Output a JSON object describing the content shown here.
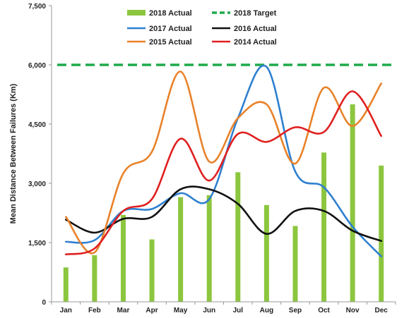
{
  "chart_data": {
    "type": "bar",
    "title": "",
    "xlabel": "",
    "ylabel": "Mean Distance Between Failures (Km)",
    "categories": [
      "Jan",
      "Feb",
      "Mar",
      "Apr",
      "May",
      "Jun",
      "Jul",
      "Aug",
      "Sep",
      "Oct",
      "Nov",
      "Dec"
    ],
    "ylim": [
      0,
      7500
    ],
    "yticks": [
      0,
      1500,
      3000,
      4500,
      6000,
      7500
    ],
    "ytick_labels": [
      "0",
      "1,500",
      "3,000",
      "4,500",
      "6,000",
      "7,500"
    ],
    "grid": false,
    "legend_placement": "top-center",
    "series": [
      {
        "name": "2018 Actual",
        "kind": "bar",
        "color": "#8cc63f",
        "values": [
          870,
          1180,
          2200,
          1580,
          2650,
          2700,
          3280,
          2450,
          1920,
          3780,
          5000,
          3450
        ]
      },
      {
        "name": "2018 Target",
        "kind": "dashed-line",
        "color": "#1faa4b",
        "values": [
          6000,
          6000,
          6000,
          6000,
          6000,
          6000,
          6000,
          6000,
          6000,
          6000,
          6000,
          6000
        ]
      },
      {
        "name": "2017 Actual",
        "kind": "line",
        "color": "#2f80d0",
        "values": [
          1520,
          1560,
          2300,
          2350,
          2750,
          2600,
          4650,
          5950,
          3300,
          2900,
          1900,
          1150
        ]
      },
      {
        "name": "2016 Actual",
        "kind": "line",
        "color": "#111111",
        "values": [
          2080,
          1750,
          2100,
          2150,
          2850,
          2850,
          2480,
          1720,
          2300,
          2300,
          1800,
          1540
        ]
      },
      {
        "name": "2015 Actual",
        "kind": "line",
        "color": "#e8822a",
        "values": [
          2150,
          1250,
          3250,
          3800,
          5830,
          3550,
          4650,
          5000,
          3500,
          5420,
          4450,
          5530
        ]
      },
      {
        "name": "2014 Actual",
        "kind": "line",
        "color": "#e02020",
        "values": [
          1200,
          1350,
          2300,
          2600,
          4130,
          3070,
          4250,
          4050,
          4420,
          4300,
          5330,
          4200
        ]
      }
    ]
  }
}
